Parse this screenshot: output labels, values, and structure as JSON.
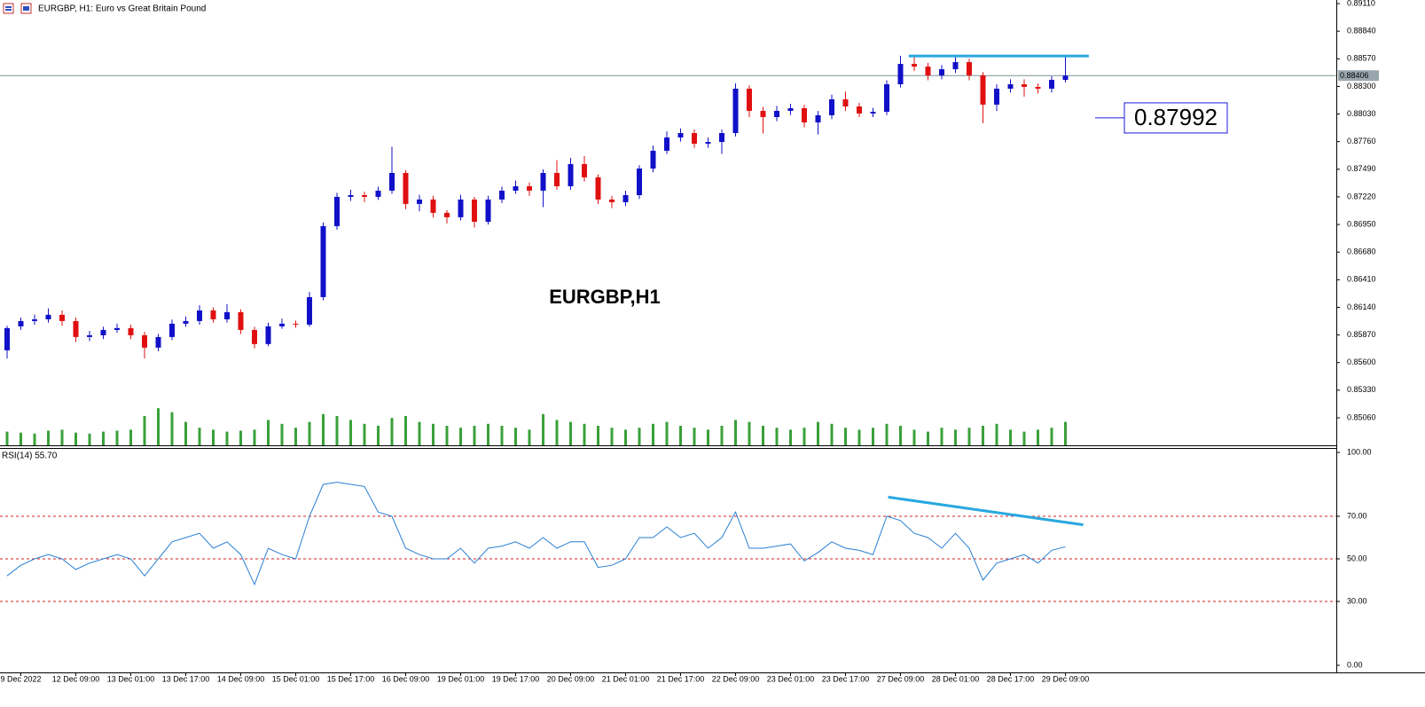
{
  "chart_data": [
    {
      "type": "candlestick",
      "title": "EURGBP, H1:  Euro vs Great Britain Pound",
      "watermark": "EURGBP,H1",
      "categories": [
        null,
        "9 Dec 2022",
        null,
        null,
        null,
        "12 Dec 09:00",
        null,
        null,
        null,
        "13 Dec 01:00",
        null,
        null,
        null,
        "13 Dec 17:00",
        null,
        null,
        null,
        "14 Dec 09:00",
        null,
        null,
        null,
        "15 Dec 01:00",
        null,
        null,
        null,
        "15 Dec 17:00",
        null,
        null,
        null,
        "16 Dec 09:00",
        null,
        null,
        null,
        "19 Dec 01:00",
        null,
        null,
        null,
        "19 Dec 17:00",
        null,
        null,
        null,
        "20 Dec 09:00",
        null,
        null,
        null,
        "21 Dec 01:00",
        null,
        null,
        null,
        "21 Dec 17:00",
        null,
        null,
        null,
        "22 Dec 09:00",
        null,
        null,
        null,
        "23 Dec 01:00",
        null,
        null,
        null,
        "23 Dec 17:00",
        null,
        null,
        null,
        "27 Dec 09:00",
        null,
        null,
        null,
        "28 Dec 01:00",
        null,
        null,
        null,
        "28 Dec 17:00",
        null,
        null,
        null,
        "29 Dec 09:00"
      ],
      "open": [
        0.8572,
        0.85954,
        0.86006,
        0.86023,
        0.86067,
        0.86006,
        0.8585,
        0.85867,
        0.85919,
        0.85937,
        0.85867,
        0.85746,
        0.8585,
        0.8598,
        0.86006,
        0.8611,
        0.86023,
        0.86093,
        0.85919,
        0.85781,
        0.85954,
        0.8598,
        0.85971,
        0.8624,
        0.86934,
        0.8722,
        0.87237,
        0.8722,
        0.87281,
        0.87454,
        0.87151,
        0.87194,
        0.87064,
        0.87021,
        0.87194,
        0.86977,
        0.87194,
        0.87281,
        0.87324,
        0.87281,
        0.87454,
        0.87324,
        0.87541,
        0.87411,
        0.87194,
        0.87168,
        0.87237,
        0.87497,
        0.87671,
        0.87801,
        0.87844,
        0.8774,
        0.87757,
        0.87844,
        0.88278,
        0.88061,
        0.88,
        0.88061,
        0.88087,
        0.87948,
        0.88018,
        0.88174,
        0.88104,
        0.88035,
        0.88052,
        0.88321,
        0.8852,
        0.88494,
        0.88408,
        0.88468,
        0.88538,
        0.88408,
        0.88122,
        0.88278,
        0.88321,
        0.88295,
        0.88278,
        0.88364
      ],
      "high": [
        0.8596,
        0.8604,
        0.8607,
        0.8613,
        0.8611,
        0.8604,
        0.8591,
        0.8595,
        0.8598,
        0.8597,
        0.859,
        0.8588,
        0.8602,
        0.8605,
        0.8616,
        0.8614,
        0.8617,
        0.8612,
        0.8595,
        0.8599,
        0.8603,
        0.8601,
        0.8629,
        0.8697,
        0.8726,
        0.8729,
        0.8727,
        0.8732,
        0.8771,
        0.8748,
        0.8724,
        0.8723,
        0.8709,
        0.8724,
        0.8722,
        0.8723,
        0.8732,
        0.8738,
        0.8736,
        0.8749,
        0.8758,
        0.876,
        0.8762,
        0.8744,
        0.8723,
        0.8728,
        0.8753,
        0.8772,
        0.8786,
        0.8789,
        0.8788,
        0.878,
        0.8788,
        0.8833,
        0.8831,
        0.881,
        0.8811,
        0.8813,
        0.8812,
        0.8806,
        0.8822,
        0.8825,
        0.8814,
        0.8809,
        0.8836,
        0.886,
        0.8861,
        0.8853,
        0.8851,
        0.8861,
        0.8857,
        0.8844,
        0.8832,
        0.8837,
        0.8837,
        0.8833,
        0.884,
        0.886
      ],
      "low": [
        0.8564,
        0.8592,
        0.8597,
        0.8599,
        0.8596,
        0.858,
        0.8581,
        0.8583,
        0.8589,
        0.8583,
        0.8564,
        0.8571,
        0.8582,
        0.8595,
        0.8597,
        0.8599,
        0.8599,
        0.8588,
        0.8574,
        0.8576,
        0.8593,
        0.8594,
        0.8595,
        0.8621,
        0.869,
        0.8718,
        0.8717,
        0.8719,
        0.8725,
        0.871,
        0.8708,
        0.8702,
        0.8696,
        0.8699,
        0.8692,
        0.8695,
        0.8716,
        0.8725,
        0.8723,
        0.8712,
        0.8729,
        0.8729,
        0.8737,
        0.8715,
        0.8711,
        0.8713,
        0.872,
        0.8746,
        0.8764,
        0.8776,
        0.877,
        0.877,
        0.8764,
        0.8781,
        0.88,
        0.8784,
        0.8796,
        0.8802,
        0.879,
        0.8783,
        0.8798,
        0.8806,
        0.88,
        0.88,
        0.8802,
        0.8829,
        0.8845,
        0.8836,
        0.8837,
        0.8843,
        0.8836,
        0.8794,
        0.8806,
        0.8824,
        0.882,
        0.8823,
        0.8824,
        0.8834
      ],
      "close": [
        0.85937,
        0.86006,
        0.86023,
        0.86067,
        0.86006,
        0.8585,
        0.85867,
        0.85919,
        0.85937,
        0.85867,
        0.85746,
        0.8585,
        0.8598,
        0.86006,
        0.8611,
        0.86023,
        0.86093,
        0.85919,
        0.85781,
        0.85954,
        0.8598,
        0.85971,
        0.8624,
        0.86934,
        0.8722,
        0.87237,
        0.8722,
        0.87281,
        0.87454,
        0.87151,
        0.87194,
        0.87064,
        0.87021,
        0.87194,
        0.86977,
        0.87194,
        0.87281,
        0.87324,
        0.87281,
        0.87454,
        0.87324,
        0.87541,
        0.87411,
        0.87194,
        0.87168,
        0.87237,
        0.87497,
        0.87671,
        0.87801,
        0.87844,
        0.8774,
        0.87757,
        0.87844,
        0.88278,
        0.88061,
        0.88,
        0.88061,
        0.88087,
        0.87948,
        0.88018,
        0.88174,
        0.88104,
        0.88035,
        0.88052,
        0.88321,
        0.8852,
        0.88494,
        0.88408,
        0.88468,
        0.88538,
        0.88408,
        0.88122,
        0.88278,
        0.88321,
        0.88295,
        0.88278,
        0.88364,
        0.88406
      ],
      "volume": [
        700,
        650,
        600,
        750,
        800,
        650,
        600,
        700,
        750,
        800,
        1500,
        1900,
        1700,
        1200,
        900,
        800,
        700,
        750,
        800,
        1300,
        1100,
        900,
        1200,
        1600,
        1500,
        1300,
        1100,
        1000,
        1400,
        1500,
        1200,
        1100,
        1000,
        900,
        1000,
        1100,
        1000,
        900,
        800,
        1600,
        1300,
        1200,
        1100,
        1000,
        900,
        800,
        900,
        1100,
        1200,
        1000,
        900,
        800,
        1000,
        1300,
        1200,
        1000,
        900,
        800,
        900,
        1200,
        1100,
        900,
        800,
        900,
        1100,
        1000,
        800,
        700,
        900,
        800,
        900,
        1000,
        1100,
        800,
        700,
        800,
        900,
        1200
      ],
      "up_color": "#1010c8",
      "down_color": "#e01010",
      "volume_color": "#3aa03a",
      "current_price": 0.88406,
      "price_line": 0.87992,
      "trendlines": [
        {
          "x": [
            65.6,
            78.7
          ],
          "values": [
            0.88598,
            0.88598
          ],
          "color": "#29a8e0"
        }
      ],
      "ylim": [
        0.84791,
        0.89145
      ],
      "yticks": [
        {
          "value": 0.8911,
          "label": "0.89110"
        },
        {
          "value": 0.8884,
          "label": "0.88840"
        },
        {
          "value": 0.8857,
          "label": "0.88570"
        },
        {
          "value": 0.883,
          "label": "0.88300"
        },
        {
          "value": 0.8803,
          "label": "0.88030"
        },
        {
          "value": 0.8776,
          "label": "0.87760"
        },
        {
          "value": 0.8749,
          "label": "0.87490"
        },
        {
          "value": 0.8722,
          "label": "0.87220"
        },
        {
          "value": 0.8695,
          "label": "0.86950"
        },
        {
          "value": 0.8668,
          "label": "0.86680"
        },
        {
          "value": 0.8641,
          "label": "0.86410"
        },
        {
          "value": 0.8614,
          "label": "0.86140"
        },
        {
          "value": 0.8587,
          "label": "0.85870"
        },
        {
          "value": 0.856,
          "label": "0.85600"
        },
        {
          "value": 0.8533,
          "label": "0.85330"
        },
        {
          "value": 0.8506,
          "label": "0.85060"
        }
      ]
    },
    {
      "type": "line",
      "label": "RSI(14) 55.70",
      "color": "#2a7fd4",
      "values": [
        42,
        47,
        50,
        52,
        50,
        45,
        48,
        50,
        52,
        50,
        42,
        50,
        58,
        60,
        62,
        55,
        58,
        52,
        38,
        55,
        52,
        50,
        70,
        85,
        86,
        85,
        84,
        72,
        70,
        55,
        52,
        50,
        50,
        55,
        48,
        55,
        56,
        58,
        55,
        60,
        55,
        58,
        58,
        46,
        47,
        50,
        60,
        60,
        65,
        60,
        62,
        55,
        60,
        72,
        55,
        55,
        56,
        57,
        49,
        53,
        58,
        55,
        54,
        52,
        70,
        68,
        62,
        60,
        55,
        62,
        55,
        40,
        48,
        50,
        52,
        48,
        54,
        55.7
      ],
      "levels": [
        70,
        50,
        30
      ],
      "level_color": "#d42020",
      "trendlines": [
        {
          "x": [
            64.1,
            78.3
          ],
          "values": [
            79,
            66
          ],
          "color": "#29a8e0"
        }
      ],
      "ylim": [
        0,
        100
      ],
      "yticks": [
        {
          "value": 100,
          "label": "100.00"
        },
        {
          "value": 70,
          "label": "70.00"
        },
        {
          "value": 50,
          "label": "50.00"
        },
        {
          "value": 30,
          "label": "30.00"
        },
        {
          "value": 0,
          "label": "0.00"
        }
      ]
    }
  ]
}
